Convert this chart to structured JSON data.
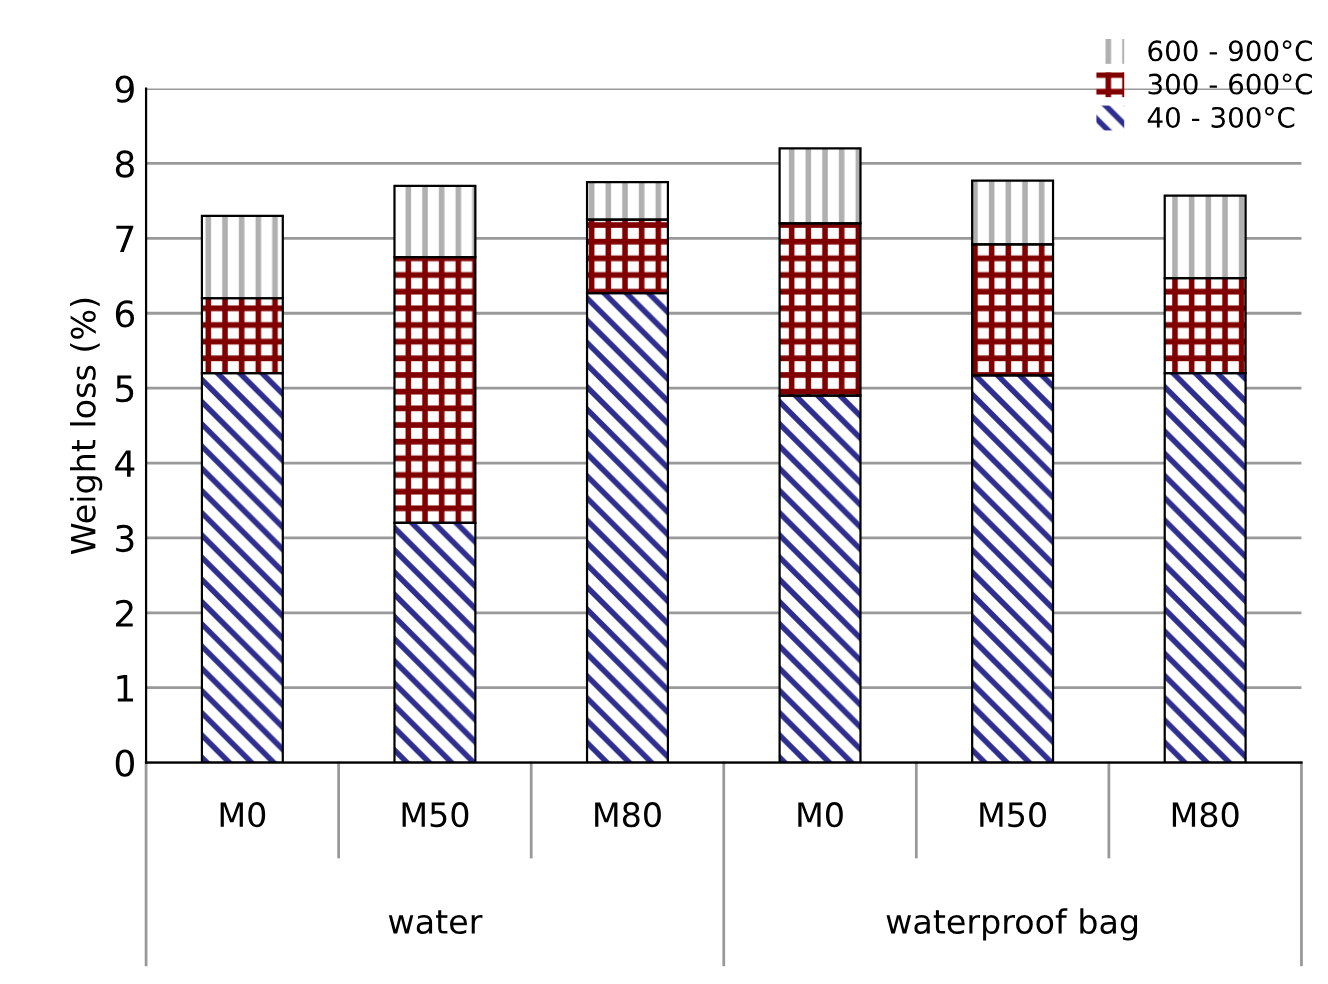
{
  "chart_data": {
    "type": "bar",
    "stacked": true,
    "ylabel": "Weight loss (%)",
    "categories": [
      "M0",
      "M50",
      "M80",
      "M0",
      "M50",
      "M80"
    ],
    "series": [
      {
        "name": "40 - 300°C",
        "color": "#2e2e8f",
        "values": [
          5.2,
          3.2,
          6.27,
          4.9,
          5.17,
          5.2
        ]
      },
      {
        "name": "300 - 600°C",
        "color": "#800000",
        "values": [
          1.0,
          3.55,
          0.98,
          2.3,
          1.75,
          1.27
        ]
      },
      {
        "name": "600 - 900°C",
        "color": "#b0b0b0",
        "values": [
          1.1,
          0.95,
          0.5,
          1.0,
          0.85,
          1.1
        ]
      }
    ],
    "annotations": [
      "water",
      "waterproof bag"
    ],
    "ylim": [
      0,
      9
    ],
    "yticks": [
      0,
      1,
      2,
      3,
      4,
      5,
      6,
      7,
      8,
      9
    ],
    "grid": "y",
    "legend": "top right"
  }
}
